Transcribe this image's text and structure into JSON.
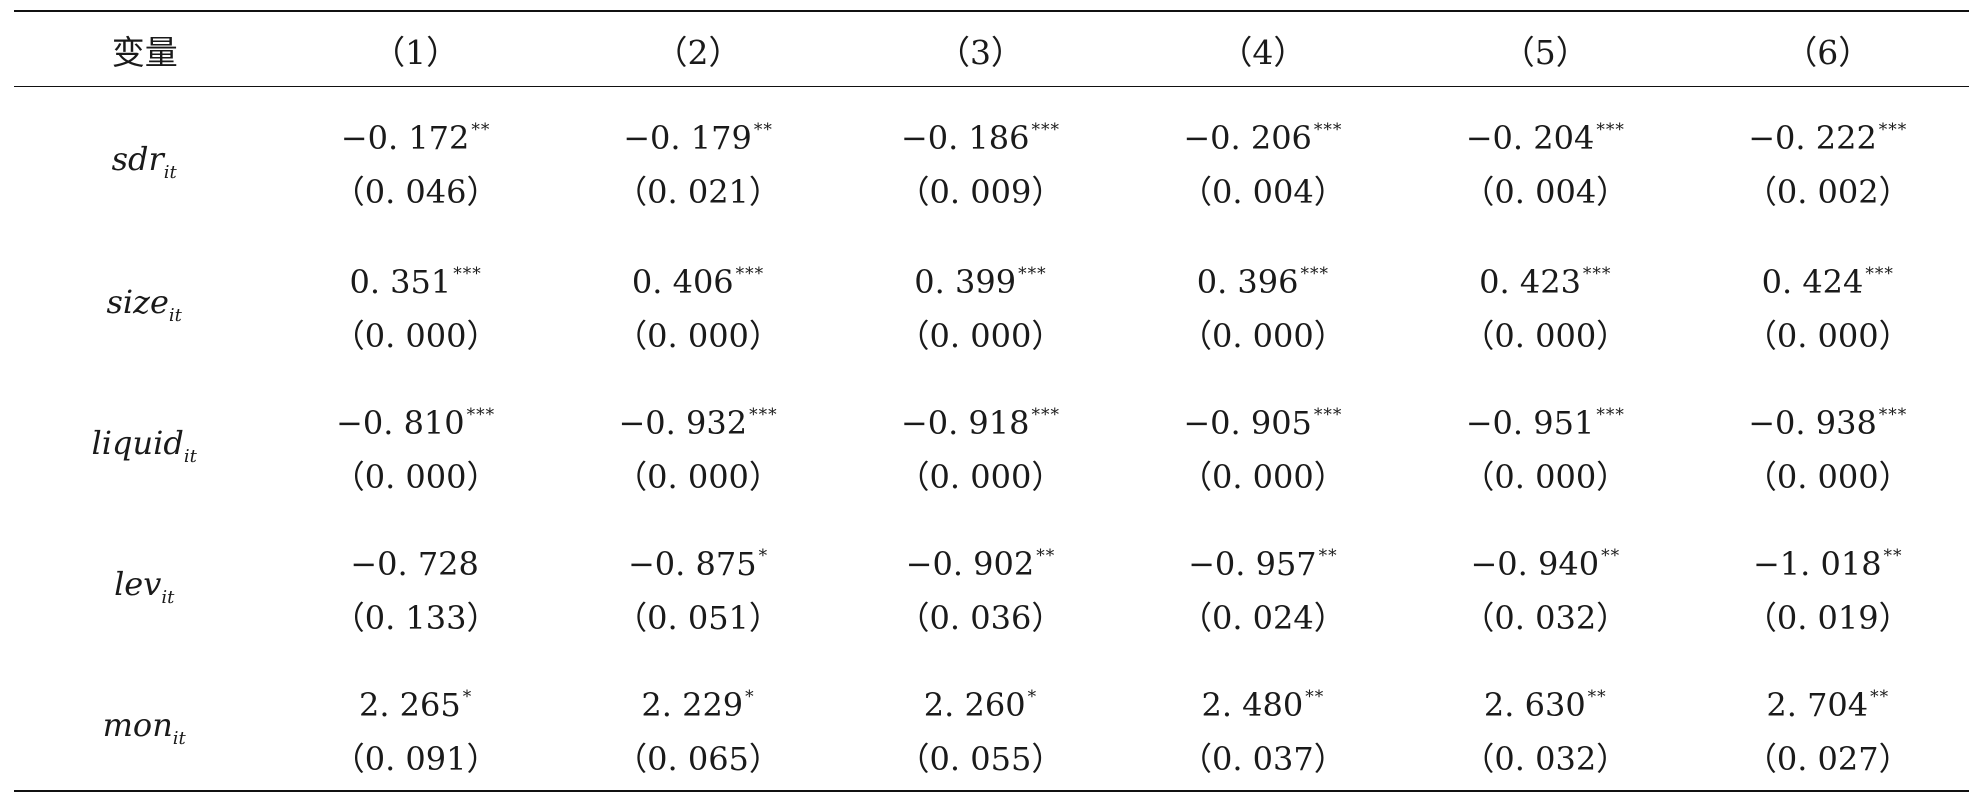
{
  "header": {
    "var_label": "变量",
    "columns": [
      "（1）",
      "（2）",
      "（3）",
      "（4）",
      "（5）",
      "（6）"
    ]
  },
  "rows": [
    {
      "var": "sdr",
      "sub": "it",
      "coefs": [
        "−0. 172",
        "−0. 179",
        "−0. 186",
        "−0. 206",
        "−0. 204",
        "−0. 222"
      ],
      "stars": [
        "**",
        "**",
        "***",
        "***",
        "***",
        "***"
      ],
      "pvals": [
        "（0. 046）",
        "（0. 021）",
        "（0. 009）",
        "（0. 004）",
        "（0. 004）",
        "（0. 002）"
      ]
    },
    {
      "var": "size",
      "sub": "it",
      "coefs": [
        "0. 351",
        "0. 406",
        "0. 399",
        "0. 396",
        "0. 423",
        "0. 424"
      ],
      "stars": [
        "***",
        "***",
        "***",
        "***",
        "***",
        "***"
      ],
      "pvals": [
        "（0. 000）",
        "（0. 000）",
        "（0. 000）",
        "（0. 000）",
        "（0. 000）",
        "（0. 000）"
      ]
    },
    {
      "var": "liquid",
      "sub": "it",
      "coefs": [
        "−0. 810",
        "−0. 932",
        "−0. 918",
        "−0. 905",
        "−0. 951",
        "−0. 938"
      ],
      "stars": [
        "***",
        "***",
        "***",
        "***",
        "***",
        "***"
      ],
      "pvals": [
        "（0. 000）",
        "（0. 000）",
        "（0. 000）",
        "（0. 000）",
        "（0. 000）",
        "（0. 000）"
      ]
    },
    {
      "var": "lev",
      "sub": "it",
      "coefs": [
        "−0. 728",
        "−0. 875",
        "−0. 902",
        "−0. 957",
        "−0. 940",
        "−1. 018"
      ],
      "stars": [
        "",
        "*",
        "**",
        "**",
        "**",
        "**"
      ],
      "pvals": [
        "（0. 133）",
        "（0. 051）",
        "（0. 036）",
        "（0. 024）",
        "（0. 032）",
        "（0. 019）"
      ]
    },
    {
      "var": "mon",
      "sub": "it",
      "coefs": [
        "2. 265",
        "2. 229",
        "2. 260",
        "2. 480",
        "2. 630",
        "2. 704"
      ],
      "stars": [
        "*",
        "*",
        "*",
        "**",
        "**",
        "**"
      ],
      "pvals": [
        "（0. 091）",
        "（0. 065）",
        "（0. 055）",
        "（0. 037）",
        "（0. 032）",
        "（0. 027）"
      ]
    }
  ]
}
